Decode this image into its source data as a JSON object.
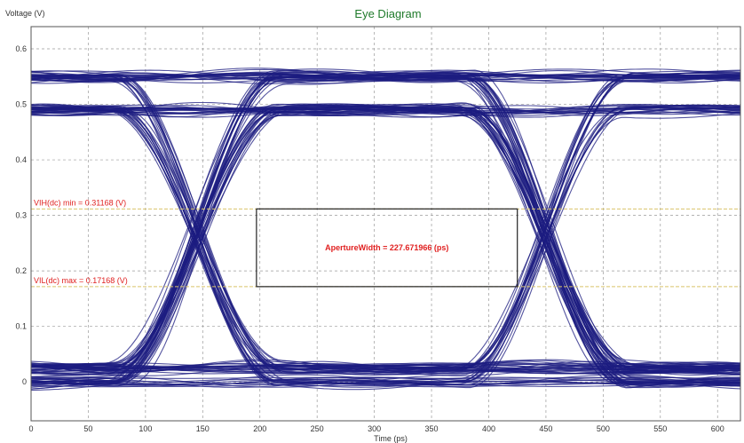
{
  "chart_data": {
    "type": "line",
    "title": "Eye Diagram",
    "xlabel": "Time (ps)",
    "ylabel": "Voltage (V)",
    "xlim": [
      0,
      620
    ],
    "ylim": [
      -0.07,
      0.64
    ],
    "x_ticks": [
      0,
      50,
      100,
      150,
      200,
      250,
      300,
      350,
      400,
      450,
      500,
      550,
      600
    ],
    "y_ticks": [
      0,
      0.1,
      0.2,
      0.3,
      0.4,
      0.5,
      0.6
    ],
    "grid": true,
    "unit_interval_ps": 305,
    "crossing_times_ps": [
      145,
      450
    ],
    "levels": {
      "high_lower": 0.49,
      "high_upper": 0.55,
      "low_lower": 0.0,
      "low_upper": 0.025
    },
    "thresholds": [
      {
        "name": "VIH(dc) min",
        "value": 0.31168,
        "label": "VIH(dc) min = 0.31168 (V)"
      },
      {
        "name": "VIL(dc) max",
        "value": 0.17168,
        "label": "VIL(dc) max = 0.17168 (V)"
      }
    ],
    "aperture": {
      "t_start": 197,
      "t_end": 425,
      "v_low": 0.17168,
      "v_high": 0.31168,
      "label": "ApertureWidth = 227.671966 (ps)"
    },
    "colors": {
      "trace": "#1c1c80",
      "title": "#1f7a2a",
      "threshold_line": "#d9c36a",
      "annotation": "#e02020",
      "box": "#222222",
      "grid": "#9a9a9a"
    }
  }
}
